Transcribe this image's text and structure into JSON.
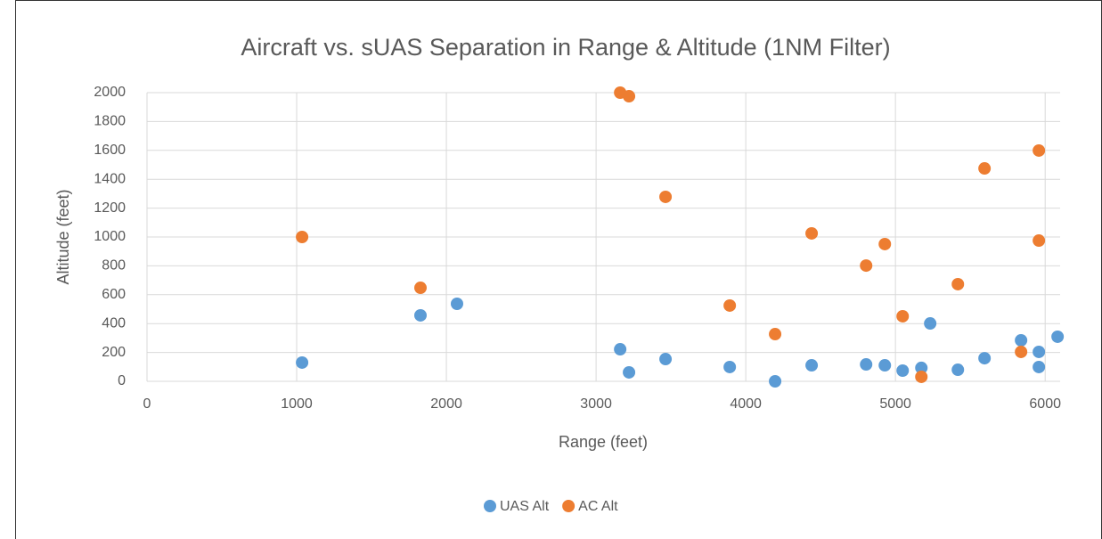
{
  "chart_data": {
    "type": "scatter",
    "title": "Aircraft vs. sUAS Separation in Range & Altitude (1NM Filter)",
    "x_label": "Range (feet)",
    "y_label": "Altitude (feet)",
    "xlim": [
      0,
      6100
    ],
    "xticks": [
      0,
      1000,
      2000,
      3000,
      4000,
      5000,
      6000
    ],
    "ylim": [
      0,
      2000
    ],
    "yticks": [
      0,
      200,
      400,
      600,
      800,
      1000,
      1200,
      1400,
      1600,
      1800,
      2000
    ],
    "grid": true,
    "legend": "bottom",
    "series": [
      {
        "name": "UAS Alt",
        "color": "#5b9bd5",
        "x": [
          1036,
          1827,
          2071,
          3161,
          3220,
          3464,
          3893,
          4196,
          4440,
          4804,
          4929,
          5048,
          5173,
          5232,
          5417,
          5595,
          5839,
          5958,
          5958,
          6083
        ],
        "values": [
          130,
          457,
          537,
          222,
          62,
          154,
          99,
          0,
          111,
          117,
          111,
          74,
          93,
          401,
          80,
          160,
          284,
          204,
          99,
          309
        ]
      },
      {
        "name": "AC Alt",
        "color": "#ed7d31",
        "x": [
          1036,
          1827,
          3161,
          3220,
          3464,
          3893,
          4196,
          4440,
          4804,
          4929,
          5048,
          5173,
          5417,
          5595,
          5839,
          5958,
          5958
        ],
        "values": [
          1000,
          648,
          2000,
          1975,
          1278,
          525,
          327,
          1025,
          802,
          951,
          451,
          31,
          673,
          1475,
          204,
          1599,
          975
        ]
      }
    ]
  }
}
